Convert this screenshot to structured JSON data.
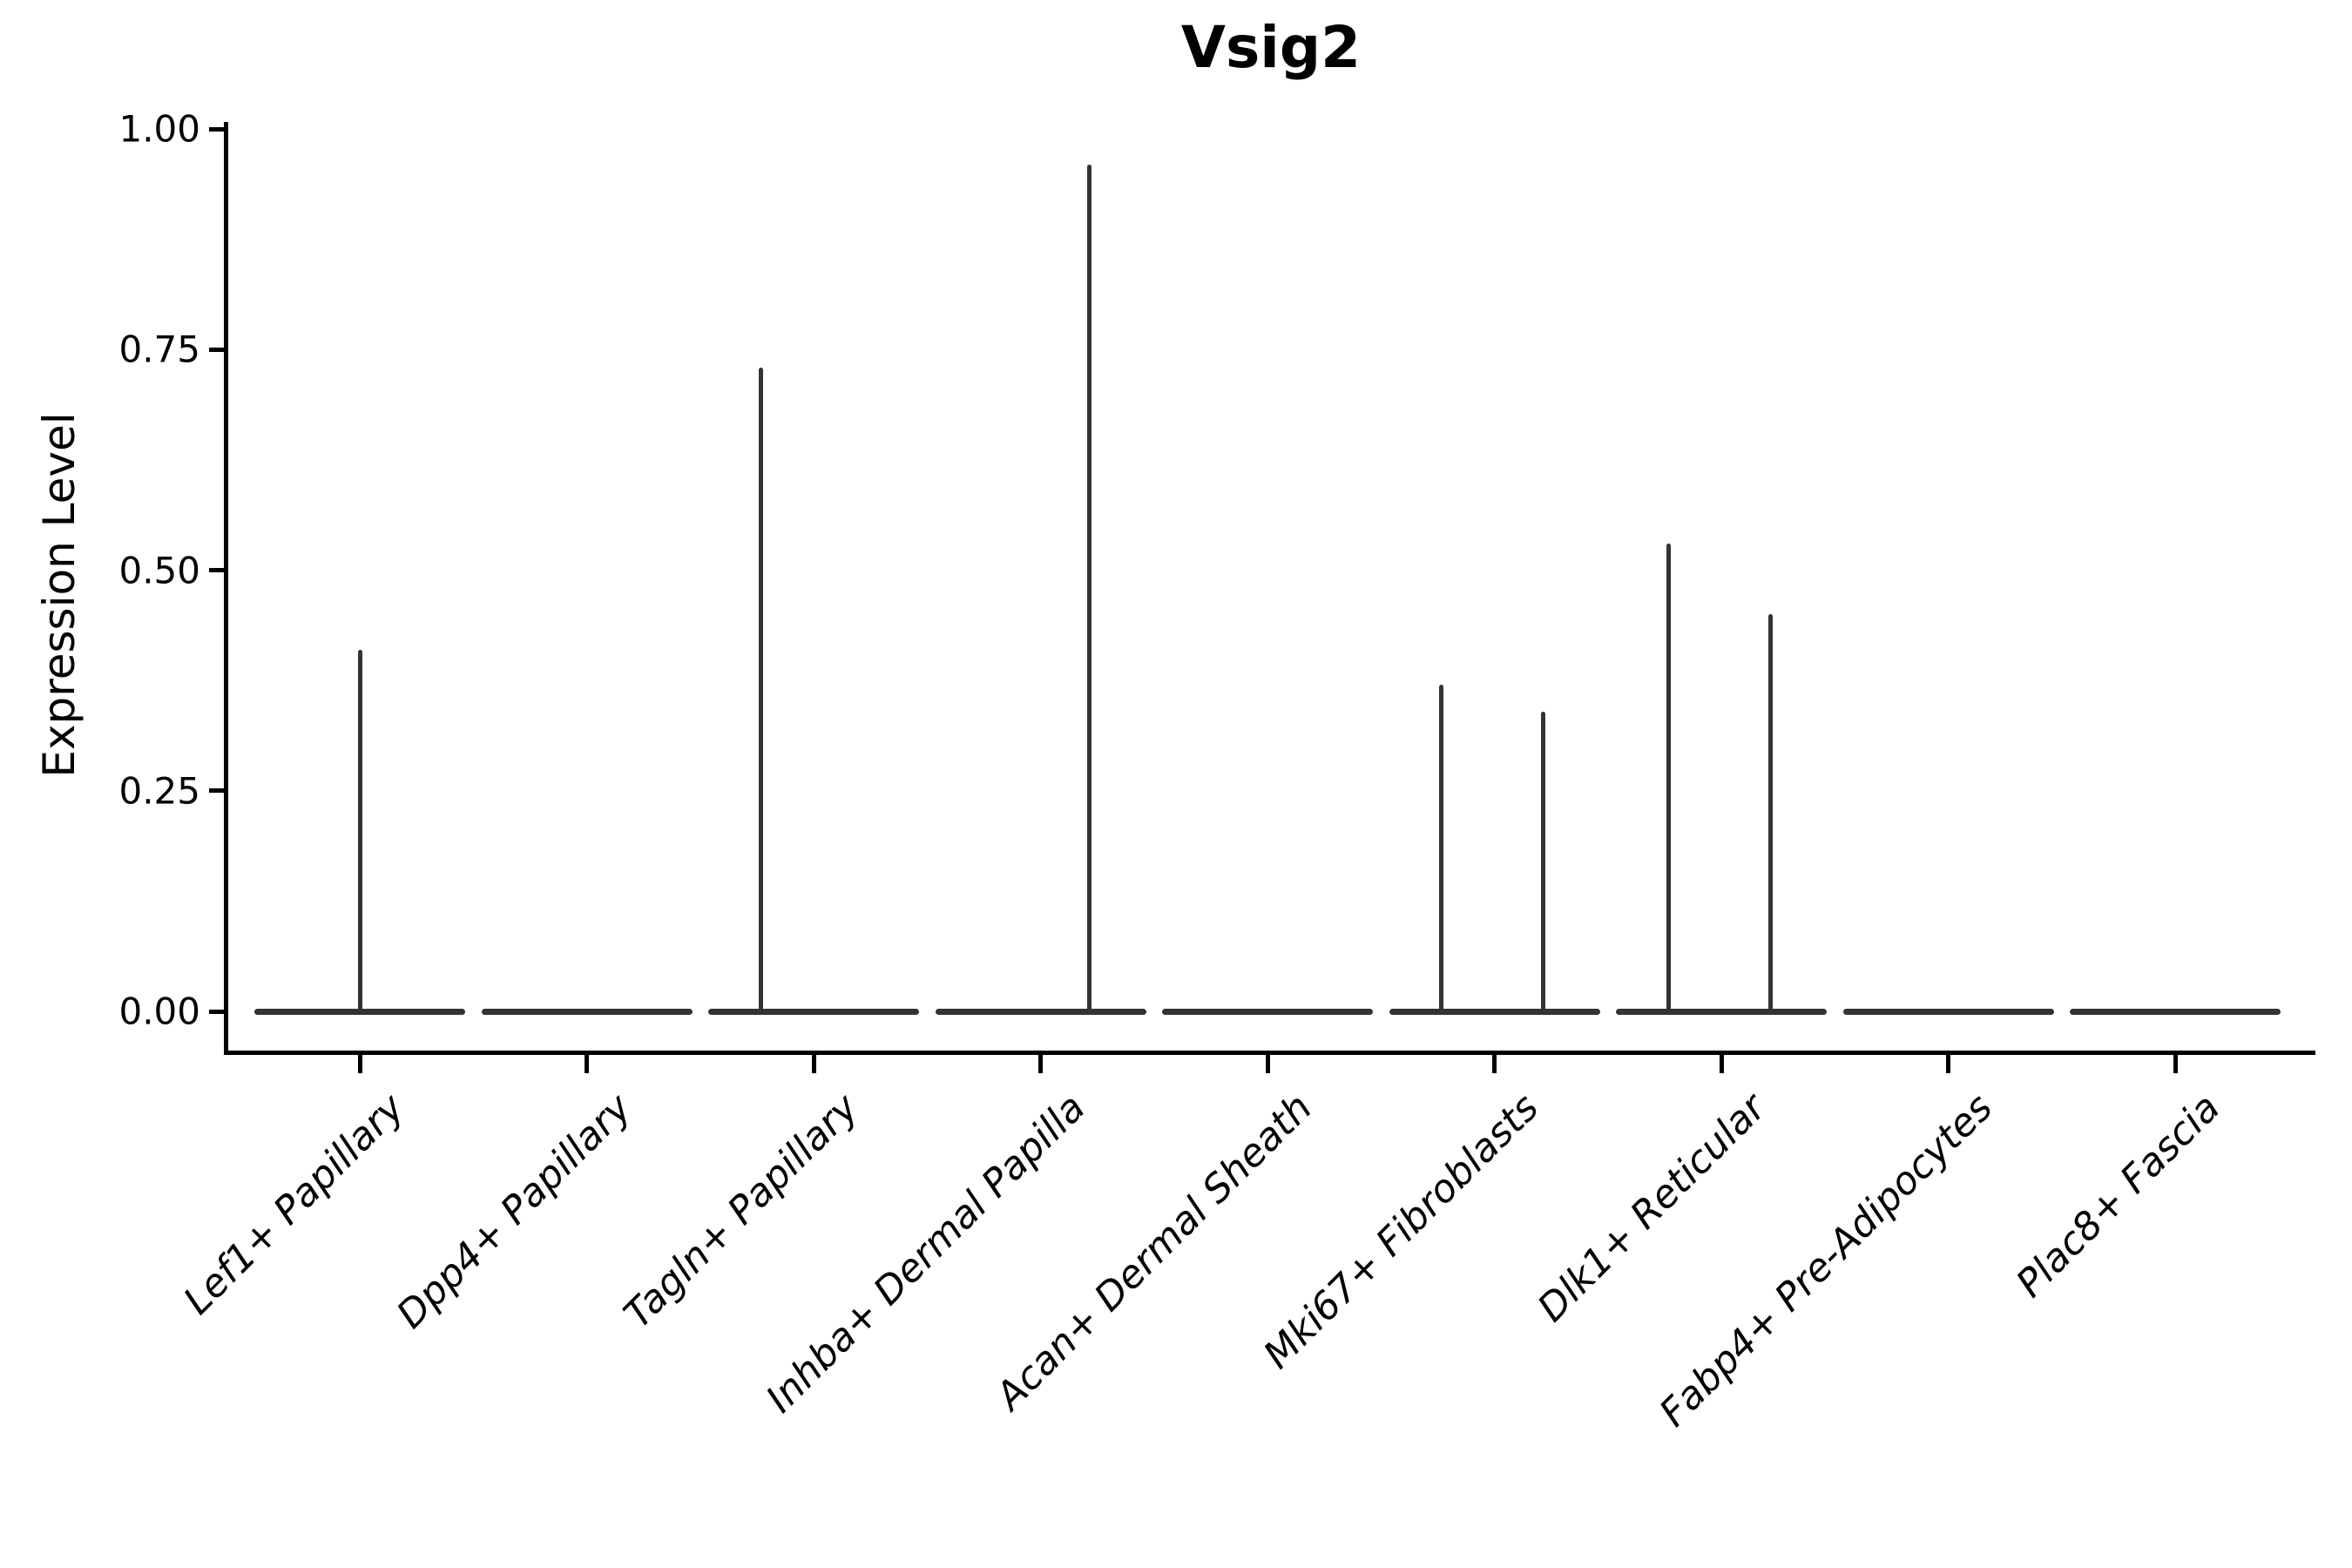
{
  "title": "Vsig2",
  "axes": {
    "ylabel": "Expression Level"
  },
  "chart_data": {
    "type": "violin",
    "title": "Vsig2",
    "xlabel": "",
    "ylabel": "Expression Level",
    "ylim": [
      0.0,
      1.0
    ],
    "yticks": [
      0.0,
      0.25,
      0.5,
      0.75,
      1.0
    ],
    "grid": false,
    "legend": false,
    "baseline_value": 0.0,
    "categories": [
      "Lef1+ Papillary",
      "Dpp4+ Papillary",
      "Tagln+ Papillary",
      "Inhba+ Dermal Papilla",
      "Acan+ Dermal Sheath",
      "Mki67+ Fibroblasts",
      "Dlk1+ Reticular",
      "Fabp4+ Pre-Adipocytes",
      "Plac8+ Fascia"
    ],
    "violins": [
      {
        "category": "Lef1+ Papillary",
        "spikes": [
          {
            "position": "center",
            "max": 0.41
          }
        ]
      },
      {
        "category": "Dpp4+ Papillary",
        "spikes": []
      },
      {
        "category": "Tagln+ Papillary",
        "spikes": [
          {
            "position": "left",
            "max": 0.73
          }
        ]
      },
      {
        "category": "Inhba+ Dermal Papilla",
        "spikes": [
          {
            "position": "right",
            "max": 0.96
          }
        ]
      },
      {
        "category": "Acan+ Dermal Sheath",
        "spikes": []
      },
      {
        "category": "Mki67+ Fibroblasts",
        "spikes": [
          {
            "position": "left",
            "max": 0.37
          },
          {
            "position": "right",
            "max": 0.34
          }
        ]
      },
      {
        "category": "Dlk1+ Reticular",
        "spikes": [
          {
            "position": "left",
            "max": 0.53
          },
          {
            "position": "right",
            "max": 0.45
          }
        ]
      },
      {
        "category": "Fabp4+ Pre-Adipocytes",
        "spikes": []
      },
      {
        "category": "Plac8+ Fascia",
        "spikes": []
      }
    ]
  }
}
